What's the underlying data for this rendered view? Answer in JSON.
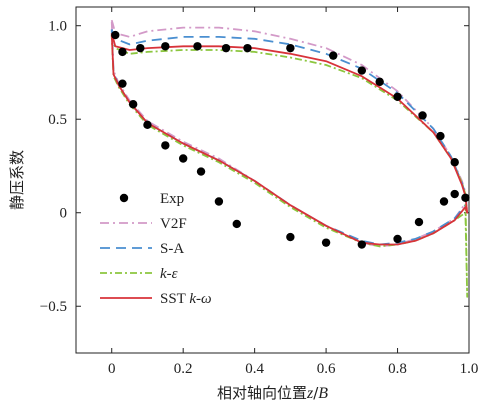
{
  "chart_data": {
    "type": "line",
    "xlabel": {
      "prefix": "相对轴向位置",
      "var": "z",
      "sep": "/",
      "var2": "B"
    },
    "ylabel": "静压系数",
    "xlim": [
      -0.1,
      1.0
    ],
    "ylim": [
      -0.75,
      1.1
    ],
    "xticks": [
      0,
      0.2,
      0.4,
      0.6,
      0.8,
      1.0
    ],
    "xtick_labels": [
      "0",
      "0.2",
      "0.4",
      "0.6",
      "0.8",
      "1.0"
    ],
    "yticks": [
      -0.5,
      0,
      0.5,
      1.0
    ],
    "ytick_labels": [
      "−0.5",
      "0",
      "0.5",
      "1.0"
    ],
    "grid": false,
    "legend_position": "left-center",
    "series": [
      {
        "name": "Exp",
        "legend_parts": [
          {
            "text": "Exp",
            "italic": false
          }
        ],
        "kind": "scatter",
        "color": "#000000",
        "x": [
          0.01,
          0.03,
          0.06,
          0.1,
          0.15,
          0.2,
          0.25,
          0.3,
          0.35,
          0.5,
          0.6,
          0.7,
          0.8,
          0.86,
          0.93,
          0.96,
          0.03,
          0.08,
          0.15,
          0.24,
          0.32,
          0.38,
          0.5,
          0.62,
          0.7,
          0.75,
          0.8,
          0.87,
          0.92,
          0.96,
          0.99
        ],
        "y": [
          0.95,
          0.69,
          0.58,
          0.47,
          0.36,
          0.29,
          0.22,
          0.06,
          -0.06,
          -0.13,
          -0.16,
          -0.17,
          -0.14,
          -0.05,
          0.06,
          0.1,
          0.86,
          0.88,
          0.89,
          0.89,
          0.88,
          0.88,
          0.88,
          0.84,
          0.76,
          0.7,
          0.62,
          0.52,
          0.41,
          0.27,
          0.08
        ]
      },
      {
        "name": "V2F",
        "legend_parts": [
          {
            "text": "V2F",
            "italic": false
          }
        ],
        "kind": "line",
        "color": "#d39ac8",
        "dash": "9,4,2,4",
        "x": [
          0.0,
          0.003,
          0.01,
          0.05,
          0.1,
          0.2,
          0.3,
          0.4,
          0.5,
          0.6,
          0.7,
          0.8,
          0.9,
          0.95,
          0.98,
          0.99,
          0.995,
          0.995,
          0.99,
          0.96,
          0.9,
          0.85,
          0.8,
          0.75,
          0.7,
          0.6,
          0.5,
          0.4,
          0.3,
          0.2,
          0.1,
          0.05,
          0.02,
          0.005,
          0.0
        ],
        "y": [
          1.03,
          1.01,
          0.96,
          0.94,
          0.97,
          0.99,
          0.99,
          0.97,
          0.93,
          0.88,
          0.79,
          0.65,
          0.45,
          0.3,
          0.17,
          0.11,
          0.0,
          0.0,
          0.05,
          -0.03,
          -0.1,
          -0.14,
          -0.17,
          -0.18,
          -0.16,
          -0.07,
          0.04,
          0.17,
          0.29,
          0.38,
          0.49,
          0.6,
          0.69,
          0.76,
          1.03
        ]
      },
      {
        "name": "S-A",
        "legend_parts": [
          {
            "text": "S-A",
            "italic": false
          }
        ],
        "kind": "line",
        "color": "#4a8fd0",
        "dash": "10,6",
        "x": [
          0.0,
          0.003,
          0.01,
          0.05,
          0.1,
          0.2,
          0.3,
          0.4,
          0.5,
          0.6,
          0.7,
          0.8,
          0.9,
          0.95,
          0.98,
          0.99,
          0.995,
          0.995,
          0.99,
          0.96,
          0.9,
          0.85,
          0.8,
          0.75,
          0.7,
          0.6,
          0.5,
          0.4,
          0.3,
          0.2,
          0.1,
          0.05,
          0.02,
          0.005,
          0.0
        ],
        "y": [
          0.98,
          0.96,
          0.93,
          0.9,
          0.92,
          0.94,
          0.94,
          0.93,
          0.9,
          0.85,
          0.77,
          0.64,
          0.45,
          0.3,
          0.16,
          0.1,
          0.0,
          0.0,
          0.04,
          -0.03,
          -0.1,
          -0.14,
          -0.16,
          -0.17,
          -0.15,
          -0.07,
          0.04,
          0.17,
          0.28,
          0.37,
          0.48,
          0.59,
          0.68,
          0.75,
          0.98
        ]
      },
      {
        "name": "k-ε",
        "legend_parts": [
          {
            "text": "k",
            "italic": true
          },
          {
            "text": "-",
            "italic": false
          },
          {
            "text": "ε",
            "italic": true
          }
        ],
        "kind": "line",
        "color": "#8cc63f",
        "dash": "7,3,2,3",
        "x": [
          0.0,
          0.003,
          0.01,
          0.05,
          0.1,
          0.2,
          0.3,
          0.4,
          0.5,
          0.6,
          0.7,
          0.8,
          0.9,
          0.95,
          0.98,
          0.99,
          0.995,
          0.995,
          0.99,
          0.96,
          0.9,
          0.85,
          0.8,
          0.75,
          0.7,
          0.6,
          0.5,
          0.4,
          0.3,
          0.2,
          0.1,
          0.05,
          0.02,
          0.005,
          0.0
        ],
        "y": [
          0.95,
          0.93,
          0.88,
          0.85,
          0.86,
          0.87,
          0.87,
          0.86,
          0.83,
          0.79,
          0.72,
          0.6,
          0.43,
          0.29,
          0.16,
          0.1,
          -0.45,
          -0.45,
          0.0,
          -0.04,
          -0.11,
          -0.15,
          -0.17,
          -0.18,
          -0.16,
          -0.08,
          0.03,
          0.16,
          0.27,
          0.36,
          0.47,
          0.58,
          0.67,
          0.73,
          0.95
        ]
      },
      {
        "name": "SST k-ω",
        "legend_parts": [
          {
            "text": "SST ",
            "italic": false
          },
          {
            "text": "k",
            "italic": true
          },
          {
            "text": "-",
            "italic": false
          },
          {
            "text": "ω",
            "italic": true
          }
        ],
        "kind": "line",
        "color": "#d8333a",
        "dash": "",
        "x": [
          0.0,
          0.003,
          0.01,
          0.05,
          0.1,
          0.2,
          0.3,
          0.4,
          0.5,
          0.6,
          0.7,
          0.8,
          0.9,
          0.95,
          0.98,
          0.99,
          0.995,
          0.995,
          0.99,
          0.96,
          0.9,
          0.85,
          0.8,
          0.75,
          0.7,
          0.6,
          0.5,
          0.4,
          0.3,
          0.2,
          0.1,
          0.05,
          0.02,
          0.005,
          0.0
        ],
        "y": [
          0.96,
          0.94,
          0.89,
          0.87,
          0.88,
          0.89,
          0.89,
          0.88,
          0.85,
          0.81,
          0.73,
          0.61,
          0.43,
          0.29,
          0.15,
          0.09,
          0.0,
          0.0,
          0.03,
          -0.04,
          -0.11,
          -0.15,
          -0.17,
          -0.17,
          -0.16,
          -0.07,
          0.04,
          0.17,
          0.28,
          0.37,
          0.48,
          0.59,
          0.68,
          0.74,
          0.96
        ]
      }
    ]
  }
}
